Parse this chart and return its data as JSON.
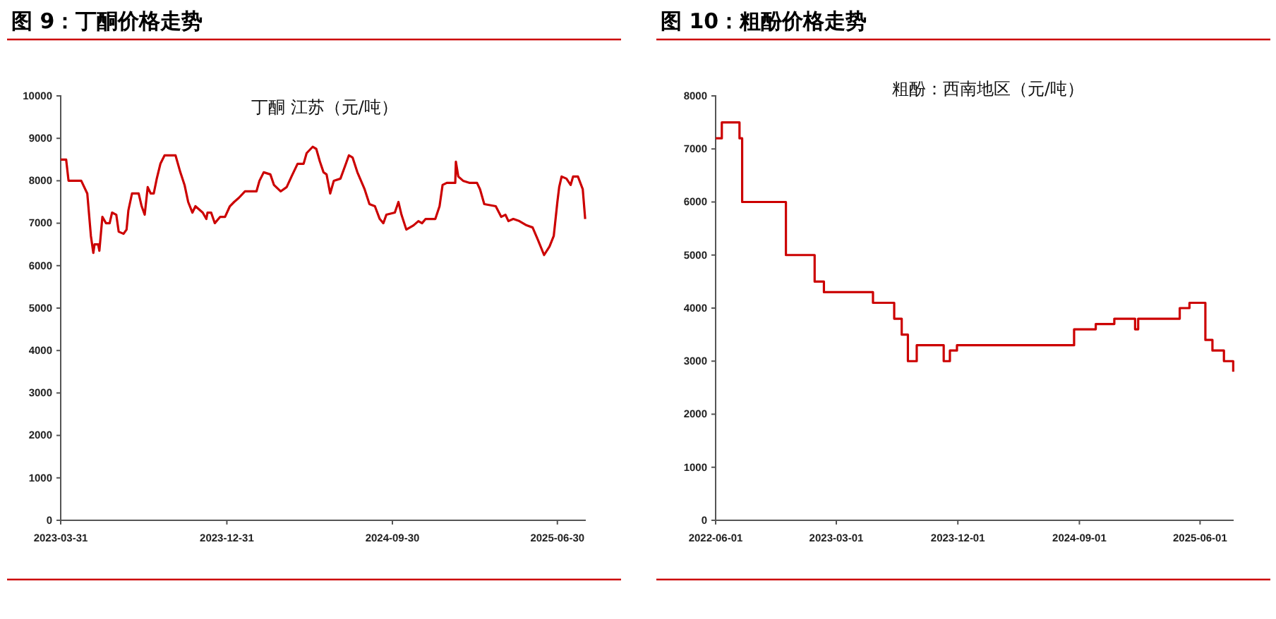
{
  "chart_data": [
    {
      "type": "line",
      "title": "图 9：丁酮价格走势",
      "annotations": [
        "丁酮 江苏（元/吨）"
      ],
      "xlim": [
        "2023-03-31",
        "2025-08-16"
      ],
      "xticks": [
        "2023-03-31",
        "2023-12-31",
        "2024-09-30",
        "2025-06-30"
      ],
      "ylim": [
        0,
        10000
      ],
      "yticks": [
        0,
        1000,
        2000,
        3000,
        4000,
        5000,
        6000,
        7000,
        8000,
        9000,
        10000
      ],
      "grid": false,
      "series": [
        {
          "color": "#cc0000",
          "x": [
            "2023-03-31",
            "2023-04-09",
            "2023-04-13",
            "2023-05-04",
            "2023-05-14",
            "2023-05-20",
            "2023-05-24",
            "2023-05-26",
            "2023-06-01",
            "2023-06-03",
            "2023-06-08",
            "2023-06-14",
            "2023-06-20",
            "2023-06-24",
            "2023-07-01",
            "2023-07-05",
            "2023-07-13",
            "2023-07-18",
            "2023-07-21",
            "2023-07-27",
            "2023-08-07",
            "2023-08-12",
            "2023-08-17",
            "2023-08-22",
            "2023-08-27",
            "2023-09-01",
            "2023-09-06",
            "2023-09-12",
            "2023-09-19",
            "2023-10-07",
            "2023-10-15",
            "2023-10-22",
            "2023-10-28",
            "2023-11-04",
            "2023-11-09",
            "2023-11-21",
            "2023-11-27",
            "2023-11-29",
            "2023-12-05",
            "2023-12-11",
            "2023-12-20",
            "2023-12-28",
            "2024-01-05",
            "2024-01-12",
            "2024-01-20",
            "2024-01-30",
            "2024-02-18",
            "2024-02-23",
            "2024-03-01",
            "2024-03-12",
            "2024-03-18",
            "2024-03-29",
            "2024-04-08",
            "2024-04-16",
            "2024-04-26",
            "2024-05-06",
            "2024-05-11",
            "2024-05-21",
            "2024-05-27",
            "2024-06-02",
            "2024-06-08",
            "2024-06-13",
            "2024-06-19",
            "2024-06-25",
            "2024-07-06",
            "2024-07-15",
            "2024-07-20",
            "2024-07-26",
            "2024-08-03",
            "2024-08-09",
            "2024-08-15",
            "2024-08-23",
            "2024-09-01",
            "2024-09-09",
            "2024-09-15",
            "2024-09-20",
            "2024-10-04",
            "2024-10-10",
            "2024-10-15",
            "2024-10-23",
            "2024-11-04",
            "2024-11-12",
            "2024-11-18",
            "2024-11-24",
            "2024-12-10",
            "2024-12-17",
            "2024-12-22",
            "2024-12-29",
            "2025-01-12",
            "2025-01-13",
            "2025-01-17",
            "2025-01-25",
            "2025-02-05",
            "2025-02-17",
            "2025-02-22",
            "2025-03-01",
            "2025-03-20",
            "2025-03-29",
            "2025-04-05",
            "2025-04-10",
            "2025-04-18",
            "2025-04-28",
            "2025-05-10",
            "2025-05-20",
            "2025-05-29",
            "2025-06-08",
            "2025-06-17",
            "2025-06-24",
            "2025-06-30",
            "2025-07-03",
            "2025-07-07",
            "2025-07-15",
            "2025-07-22",
            "2025-07-26",
            "2025-08-03",
            "2025-08-11",
            "2025-08-15"
          ],
          "values": [
            8500,
            8500,
            8000,
            8000,
            7700,
            6700,
            6300,
            6500,
            6500,
            6350,
            7150,
            7000,
            7000,
            7250,
            7200,
            6800,
            6750,
            6850,
            7300,
            7700,
            7700,
            7400,
            7200,
            7850,
            7700,
            7700,
            8050,
            8400,
            8600,
            8600,
            8200,
            7900,
            7500,
            7250,
            7400,
            7250,
            7100,
            7250,
            7250,
            7000,
            7150,
            7150,
            7400,
            7500,
            7600,
            7750,
            7750,
            8000,
            8200,
            8150,
            7900,
            7750,
            7850,
            8100,
            8400,
            8400,
            8650,
            8800,
            8750,
            8450,
            8200,
            8150,
            7700,
            8000,
            8050,
            8400,
            8600,
            8550,
            8200,
            8000,
            7800,
            7450,
            7400,
            7100,
            7000,
            7200,
            7250,
            7500,
            7200,
            6850,
            6950,
            7050,
            7000,
            7100,
            7100,
            7400,
            7900,
            7950,
            7950,
            8450,
            8100,
            8000,
            7950,
            7950,
            7800,
            7450,
            7400,
            7150,
            7200,
            7050,
            7100,
            7050,
            6950,
            6900,
            6600,
            6250,
            6450,
            6700,
            7500,
            7850,
            8100,
            8050,
            7900,
            8100,
            8100,
            7800,
            7100
          ]
        }
      ]
    },
    {
      "type": "step",
      "title": "图 10：粗酚价格走势",
      "annotations": [
        "粗酚：西南地区（元/吨）"
      ],
      "xlim": [
        "2022-06-01",
        "2025-08-16"
      ],
      "xticks": [
        "2022-06-01",
        "2023-03-01",
        "2023-12-01",
        "2024-09-01",
        "2025-06-01"
      ],
      "ylim": [
        0,
        8000
      ],
      "yticks": [
        0,
        1000,
        2000,
        3000,
        4000,
        5000,
        6000,
        7000,
        8000
      ],
      "grid": false,
      "series": [
        {
          "color": "#cc0000",
          "x": [
            "2022-06-01",
            "2022-06-15",
            "2022-07-25",
            "2022-07-31",
            "2022-11-07",
            "2023-01-11",
            "2023-02-01",
            "2023-05-23",
            "2023-07-10",
            "2023-07-27",
            "2023-08-10",
            "2023-08-30",
            "2023-10-30",
            "2023-11-13",
            "2023-11-29",
            "2024-08-20",
            "2024-10-08",
            "2024-11-19",
            "2025-01-05",
            "2025-01-12",
            "2025-04-16",
            "2025-05-08",
            "2025-06-13",
            "2025-06-29",
            "2025-07-25",
            "2025-08-15"
          ],
          "values": [
            7200,
            7500,
            7200,
            6000,
            5000,
            4500,
            4300,
            4100,
            3800,
            3500,
            3000,
            3300,
            3000,
            3200,
            3300,
            3600,
            3700,
            3800,
            3600,
            3800,
            4000,
            4100,
            3400,
            3200,
            3000,
            2800
          ]
        }
      ]
    }
  ]
}
